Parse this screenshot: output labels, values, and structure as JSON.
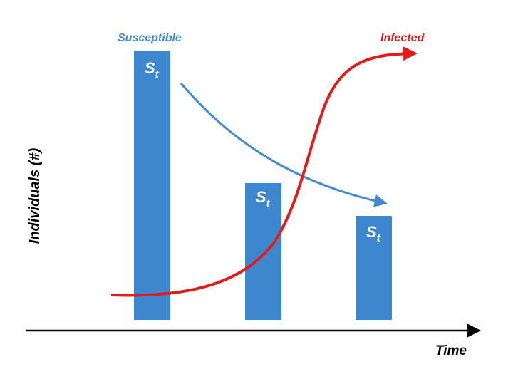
{
  "axes": {
    "y_label": "Individuals (#)",
    "x_label": "Time"
  },
  "series_labels": {
    "susceptible": "Susceptible",
    "infected": "Infected"
  },
  "bars": [
    {
      "label_main": "S",
      "label_sub": "t",
      "relative_height": 1.0
    },
    {
      "label_main": "S",
      "label_sub": "t",
      "relative_height": 0.51
    },
    {
      "label_main": "S",
      "label_sub": "t",
      "relative_height": 0.39
    }
  ],
  "colors": {
    "bar": "#3c87cd",
    "susceptible": "#3f8bd0",
    "infected": "#e31b1b",
    "axis": "#000000",
    "bar_label": "#ffffff"
  }
}
